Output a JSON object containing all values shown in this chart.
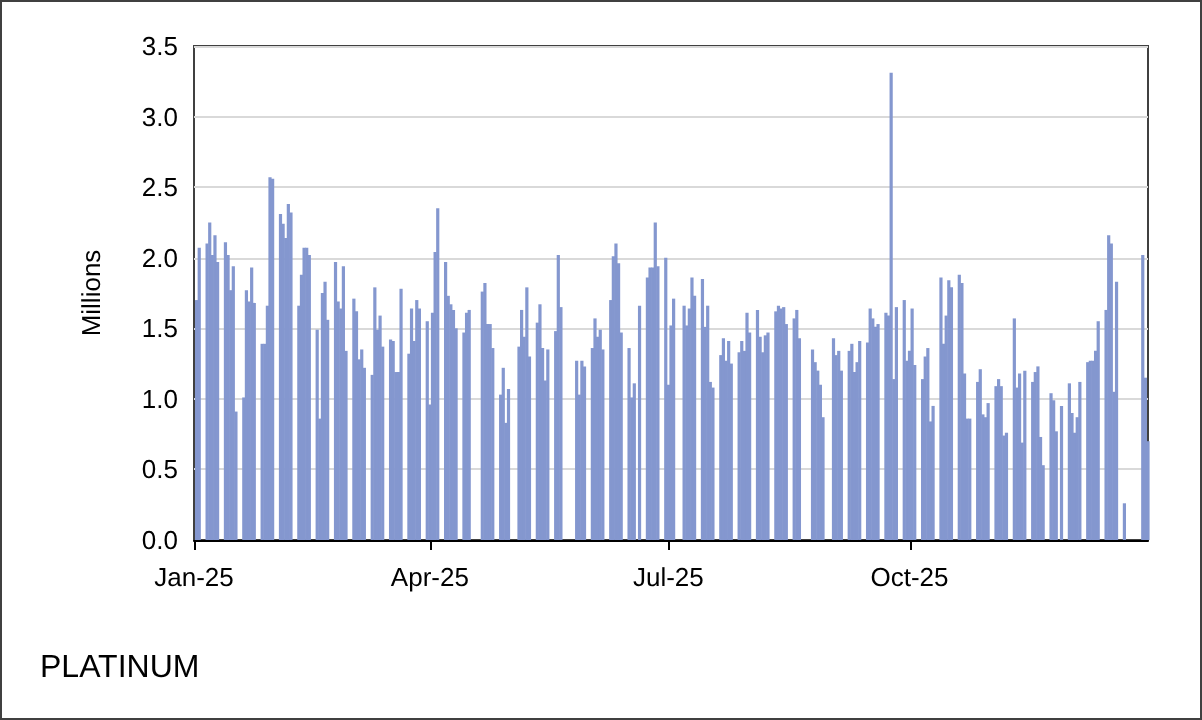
{
  "chart_data": {
    "type": "bar",
    "title": "PLATINUM",
    "ylabel": "Millions",
    "color": "#8497cf",
    "grid": "y",
    "xlim": [
      "2025-01-01",
      "2025-12-31"
    ],
    "xticks": [
      {
        "value": "2025-01-01",
        "label": "Jan-25"
      },
      {
        "value": "2025-04-01",
        "label": "Apr-25"
      },
      {
        "value": "2025-07-01",
        "label": "Jul-25"
      },
      {
        "value": "2025-10-01",
        "label": "Oct-25"
      }
    ],
    "ylim": [
      0,
      3.5
    ],
    "yticks": [
      {
        "value": 0,
        "label": "0.0"
      },
      {
        "value": 0.5,
        "label": "0.5"
      },
      {
        "value": 1,
        "label": "1.0"
      },
      {
        "value": 1.5,
        "label": "1.5"
      },
      {
        "value": 2,
        "label": "2.0"
      },
      {
        "value": 2.5,
        "label": "2.5"
      },
      {
        "value": 3,
        "label": "3.0"
      },
      {
        "value": 3.5,
        "label": "3.5"
      }
    ],
    "x": [
      "2025-01-02",
      "2025-01-03",
      "2025-01-06",
      "2025-01-07",
      "2025-01-08",
      "2025-01-09",
      "2025-01-10",
      "2025-01-13",
      "2025-01-14",
      "2025-01-15",
      "2025-01-16",
      "2025-01-17",
      "2025-01-20",
      "2025-01-21",
      "2025-01-22",
      "2025-01-23",
      "2025-01-24",
      "2025-01-27",
      "2025-01-28",
      "2025-01-29",
      "2025-01-30",
      "2025-01-31",
      "2025-02-03",
      "2025-02-04",
      "2025-02-05",
      "2025-02-06",
      "2025-02-07",
      "2025-02-10",
      "2025-02-11",
      "2025-02-12",
      "2025-02-13",
      "2025-02-14",
      "2025-02-17",
      "2025-02-18",
      "2025-02-19",
      "2025-02-20",
      "2025-02-21",
      "2025-02-24",
      "2025-02-25",
      "2025-02-26",
      "2025-02-27",
      "2025-02-28",
      "2025-03-03",
      "2025-03-04",
      "2025-03-05",
      "2025-03-06",
      "2025-03-07",
      "2025-03-10",
      "2025-03-11",
      "2025-03-12",
      "2025-03-13",
      "2025-03-14",
      "2025-03-17",
      "2025-03-18",
      "2025-03-19",
      "2025-03-20",
      "2025-03-21",
      "2025-03-24",
      "2025-03-25",
      "2025-03-26",
      "2025-03-27",
      "2025-03-28",
      "2025-03-31",
      "2025-04-01",
      "2025-04-02",
      "2025-04-03",
      "2025-04-04",
      "2025-04-07",
      "2025-04-08",
      "2025-04-09",
      "2025-04-10",
      "2025-04-11",
      "2025-04-14",
      "2025-04-15",
      "2025-04-16",
      "2025-04-21",
      "2025-04-22",
      "2025-04-23",
      "2025-04-24",
      "2025-04-25",
      "2025-04-28",
      "2025-04-29",
      "2025-04-30",
      "2025-05-01",
      "2025-05-05",
      "2025-05-06",
      "2025-05-07",
      "2025-05-08",
      "2025-05-09",
      "2025-05-12",
      "2025-05-13",
      "2025-05-14",
      "2025-05-15",
      "2025-05-16",
      "2025-05-19",
      "2025-05-20",
      "2025-05-21",
      "2025-05-27",
      "2025-05-28",
      "2025-05-29",
      "2025-05-30",
      "2025-06-02",
      "2025-06-03",
      "2025-06-04",
      "2025-06-05",
      "2025-06-06",
      "2025-06-09",
      "2025-06-10",
      "2025-06-11",
      "2025-06-12",
      "2025-06-13",
      "2025-06-16",
      "2025-06-17",
      "2025-06-18",
      "2025-06-20",
      "2025-06-23",
      "2025-06-24",
      "2025-06-25",
      "2025-06-26",
      "2025-06-27",
      "2025-06-30",
      "2025-07-01",
      "2025-07-02",
      "2025-07-03",
      "2025-07-07",
      "2025-07-08",
      "2025-07-09",
      "2025-07-10",
      "2025-07-11",
      "2025-07-14",
      "2025-07-15",
      "2025-07-16",
      "2025-07-17",
      "2025-07-18",
      "2025-07-21",
      "2025-07-22",
      "2025-07-23",
      "2025-07-24",
      "2025-07-25",
      "2025-07-28",
      "2025-07-29",
      "2025-07-30",
      "2025-07-31",
      "2025-08-01",
      "2025-08-04",
      "2025-08-05",
      "2025-08-06",
      "2025-08-07",
      "2025-08-08",
      "2025-08-11",
      "2025-08-12",
      "2025-08-13",
      "2025-08-14",
      "2025-08-15",
      "2025-08-18",
      "2025-08-19",
      "2025-08-20",
      "2025-08-25",
      "2025-08-26",
      "2025-08-27",
      "2025-08-28",
      "2025-08-29",
      "2025-09-02",
      "2025-09-03",
      "2025-09-04",
      "2025-09-05",
      "2025-09-08",
      "2025-09-09",
      "2025-09-10",
      "2025-09-11",
      "2025-09-12",
      "2025-09-15",
      "2025-09-16",
      "2025-09-17",
      "2025-09-18",
      "2025-09-19",
      "2025-09-22",
      "2025-09-23",
      "2025-09-24",
      "2025-09-25",
      "2025-09-26",
      "2025-09-29",
      "2025-09-30",
      "2025-10-01",
      "2025-10-02",
      "2025-10-03",
      "2025-10-06",
      "2025-10-07",
      "2025-10-08",
      "2025-10-09",
      "2025-10-10",
      "2025-10-13",
      "2025-10-14",
      "2025-10-15",
      "2025-10-16",
      "2025-10-17",
      "2025-10-20",
      "2025-10-21",
      "2025-10-22",
      "2025-10-23",
      "2025-10-24",
      "2025-10-27",
      "2025-10-28",
      "2025-10-29",
      "2025-10-30",
      "2025-10-31",
      "2025-11-03",
      "2025-11-04",
      "2025-11-05",
      "2025-11-06",
      "2025-11-07",
      "2025-11-10",
      "2025-11-11",
      "2025-11-12",
      "2025-11-13",
      "2025-11-14",
      "2025-11-17",
      "2025-11-18",
      "2025-11-19",
      "2025-11-20",
      "2025-11-21",
      "2025-11-24",
      "2025-11-25",
      "2025-11-26",
      "2025-11-28",
      "2025-12-01",
      "2025-12-02",
      "2025-12-03",
      "2025-12-04",
      "2025-12-05",
      "2025-12-08",
      "2025-12-09",
      "2025-12-10",
      "2025-12-11",
      "2025-12-12",
      "2025-12-15",
      "2025-12-16",
      "2025-12-17",
      "2025-12-18",
      "2025-12-19",
      "2025-12-22",
      "2025-12-29",
      "2025-12-30",
      "2025-12-31"
    ],
    "values": [
      1.7,
      2.07,
      2.1,
      2.25,
      2.02,
      2.16,
      1.97,
      2.11,
      2.02,
      1.77,
      1.94,
      0.91,
      1.01,
      1.77,
      1.69,
      1.93,
      1.68,
      1.39,
      1.39,
      1.66,
      2.57,
      2.56,
      2.31,
      2.24,
      2.14,
      2.38,
      2.32,
      1.66,
      1.88,
      2.07,
      2.07,
      2.02,
      1.49,
      0.86,
      1.75,
      1.83,
      1.56,
      1.97,
      1.69,
      1.64,
      1.94,
      1.34,
      1.71,
      1.62,
      1.28,
      1.35,
      1.22,
      1.17,
      1.79,
      1.49,
      1.59,
      1.37,
      1.42,
      1.41,
      1.19,
      1.19,
      1.78,
      1.32,
      1.64,
      1.41,
      1.7,
      1.64,
      1.55,
      0.96,
      1.61,
      2.04,
      2.35,
      1.97,
      1.73,
      1.67,
      1.63,
      1.5,
      1.47,
      1.61,
      1.63,
      1.76,
      1.82,
      1.53,
      1.53,
      1.36,
      1.03,
      1.22,
      0.83,
      1.07,
      1.37,
      1.63,
      1.44,
      1.79,
      1.3,
      1.54,
      1.67,
      1.36,
      1.13,
      1.35,
      1.48,
      2.02,
      1.65,
      1.27,
      1.03,
      1.27,
      1.23,
      1.36,
      1.57,
      1.44,
      1.49,
      1.35,
      1.7,
      2.01,
      2.1,
      1.96,
      1.47,
      1.36,
      1.01,
      1.11,
      1.66,
      1.86,
      1.93,
      1.93,
      2.25,
      1.94,
      2.0,
      1.1,
      1.52,
      1.71,
      1.66,
      1.52,
      1.64,
      1.86,
      1.73,
      1.85,
      1.51,
      1.66,
      1.12,
      1.08,
      1.31,
      1.43,
      1.27,
      1.41,
      1.25,
      1.33,
      1.41,
      1.34,
      1.61,
      1.47,
      1.63,
      1.44,
      1.33,
      1.45,
      1.47,
      1.62,
      1.66,
      1.64,
      1.65,
      1.53,
      1.57,
      1.63,
      1.43,
      1.35,
      1.26,
      1.2,
      1.1,
      0.87,
      1.43,
      1.31,
      1.34,
      1.2,
      1.34,
      1.39,
      1.19,
      1.26,
      1.41,
      1.4,
      1.64,
      1.57,
      1.51,
      1.53,
      1.61,
      1.59,
      3.31,
      1.14,
      1.65,
      1.7,
      1.27,
      1.34,
      1.64,
      1.24,
      1.14,
      1.3,
      1.36,
      0.84,
      0.95,
      1.86,
      1.39,
      1.59,
      1.84,
      1.79,
      1.88,
      1.82,
      1.18,
      0.86,
      0.86,
      1.12,
      1.21,
      0.89,
      0.87,
      0.97,
      1.09,
      1.14,
      1.09,
      0.74,
      0.76,
      1.57,
      1.08,
      1.18,
      0.69,
      1.2,
      1.12,
      1.19,
      1.23,
      0.73,
      0.53,
      1.04,
      0.99,
      0.77,
      0.95,
      1.11,
      0.9,
      0.76,
      0.87,
      1.12,
      1.26,
      1.27,
      1.27,
      1.34,
      1.55,
      1.63,
      2.16,
      2.1,
      1.05,
      1.83,
      0.26,
      2.02,
      1.15,
      0.7
    ]
  }
}
